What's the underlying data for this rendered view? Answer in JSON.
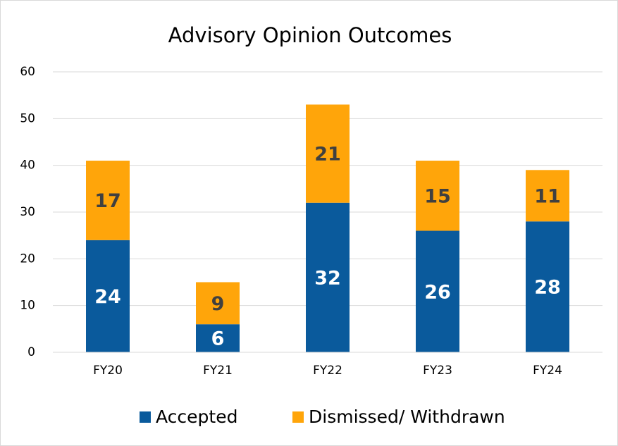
{
  "chart_data": {
    "type": "stacked_bar",
    "title": "Advisory Opinion Outcomes",
    "categories": [
      "FY20",
      "FY21",
      "FY22",
      "FY23",
      "FY24"
    ],
    "series": [
      {
        "name": "Accepted",
        "color": "#0a5a9c",
        "values": [
          24,
          6,
          32,
          26,
          28
        ]
      },
      {
        "name": "Dismissed/ Withdrawn",
        "color": "#ffa50a",
        "values": [
          17,
          9,
          21,
          15,
          11
        ]
      }
    ],
    "ylim": [
      0,
      60
    ],
    "yticks": [
      0,
      10,
      20,
      30,
      40,
      50,
      60
    ],
    "grid": true,
    "legend": "bottom"
  }
}
